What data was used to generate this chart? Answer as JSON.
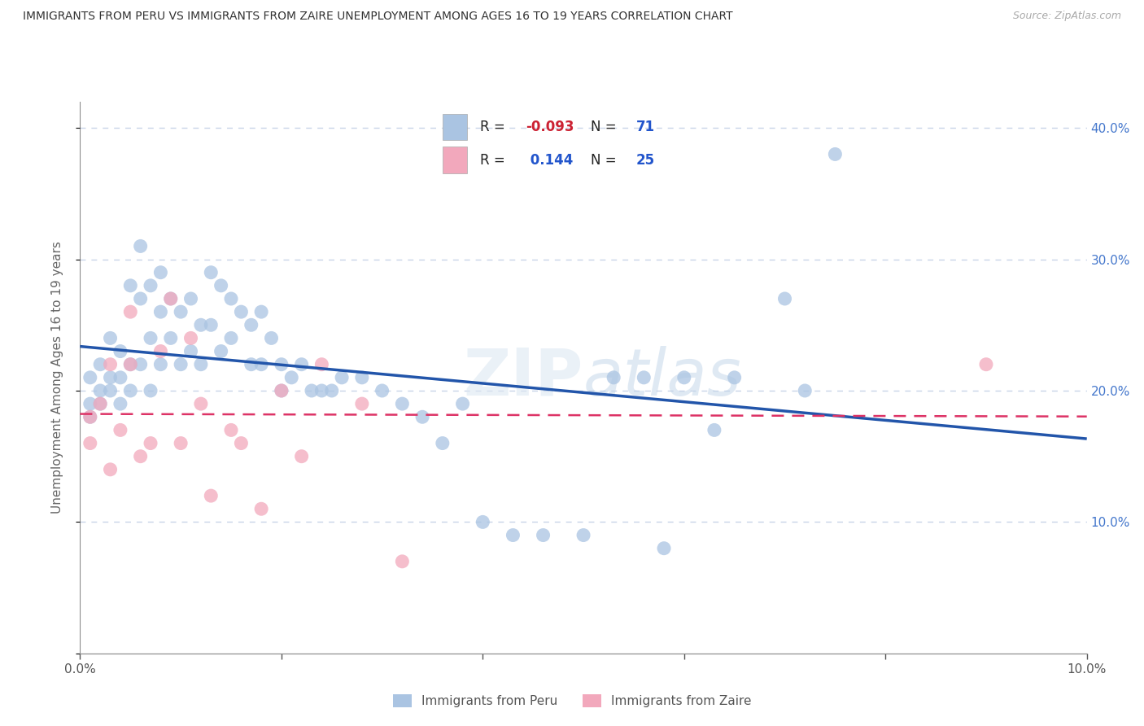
{
  "title": "IMMIGRANTS FROM PERU VS IMMIGRANTS FROM ZAIRE UNEMPLOYMENT AMONG AGES 16 TO 19 YEARS CORRELATION CHART",
  "source": "Source: ZipAtlas.com",
  "ylabel": "Unemployment Among Ages 16 to 19 years",
  "xlim": [
    0.0,
    0.1
  ],
  "ylim": [
    0.0,
    0.42
  ],
  "xticks": [
    0.0,
    0.02,
    0.04,
    0.06,
    0.08,
    0.1
  ],
  "yticks": [
    0.0,
    0.1,
    0.2,
    0.3,
    0.4
  ],
  "peru_color": "#aac4e2",
  "zaire_color": "#f2a8bc",
  "peru_line_color": "#2255aa",
  "zaire_line_color": "#dd3366",
  "peru_R": -0.093,
  "peru_N": 71,
  "zaire_R": 0.144,
  "zaire_N": 25,
  "watermark": "ZIPatlas",
  "background_color": "#ffffff",
  "grid_color": "#c8d4e8",
  "peru_x": [
    0.001,
    0.001,
    0.001,
    0.002,
    0.002,
    0.002,
    0.003,
    0.003,
    0.003,
    0.004,
    0.004,
    0.004,
    0.005,
    0.005,
    0.005,
    0.006,
    0.006,
    0.006,
    0.007,
    0.007,
    0.007,
    0.008,
    0.008,
    0.008,
    0.009,
    0.009,
    0.01,
    0.01,
    0.011,
    0.011,
    0.012,
    0.012,
    0.013,
    0.013,
    0.014,
    0.014,
    0.015,
    0.015,
    0.016,
    0.017,
    0.017,
    0.018,
    0.018,
    0.019,
    0.02,
    0.02,
    0.021,
    0.022,
    0.023,
    0.024,
    0.025,
    0.026,
    0.028,
    0.03,
    0.032,
    0.034,
    0.036,
    0.038,
    0.04,
    0.043,
    0.046,
    0.05,
    0.053,
    0.056,
    0.058,
    0.06,
    0.063,
    0.065,
    0.07,
    0.072,
    0.075
  ],
  "peru_y": [
    0.21,
    0.19,
    0.18,
    0.22,
    0.2,
    0.19,
    0.24,
    0.21,
    0.2,
    0.23,
    0.21,
    0.19,
    0.28,
    0.22,
    0.2,
    0.31,
    0.27,
    0.22,
    0.28,
    0.24,
    0.2,
    0.29,
    0.26,
    0.22,
    0.27,
    0.24,
    0.26,
    0.22,
    0.27,
    0.23,
    0.25,
    0.22,
    0.29,
    0.25,
    0.28,
    0.23,
    0.27,
    0.24,
    0.26,
    0.25,
    0.22,
    0.26,
    0.22,
    0.24,
    0.22,
    0.2,
    0.21,
    0.22,
    0.2,
    0.2,
    0.2,
    0.21,
    0.21,
    0.2,
    0.19,
    0.18,
    0.16,
    0.19,
    0.1,
    0.09,
    0.09,
    0.09,
    0.21,
    0.21,
    0.08,
    0.21,
    0.17,
    0.21,
    0.27,
    0.2,
    0.38
  ],
  "zaire_x": [
    0.001,
    0.001,
    0.002,
    0.003,
    0.003,
    0.004,
    0.005,
    0.005,
    0.006,
    0.007,
    0.008,
    0.009,
    0.01,
    0.011,
    0.012,
    0.013,
    0.015,
    0.016,
    0.018,
    0.02,
    0.022,
    0.024,
    0.028,
    0.032,
    0.09
  ],
  "zaire_y": [
    0.18,
    0.16,
    0.19,
    0.14,
    0.22,
    0.17,
    0.26,
    0.22,
    0.15,
    0.16,
    0.23,
    0.27,
    0.16,
    0.24,
    0.19,
    0.12,
    0.17,
    0.16,
    0.11,
    0.2,
    0.15,
    0.22,
    0.19,
    0.07,
    0.22
  ]
}
